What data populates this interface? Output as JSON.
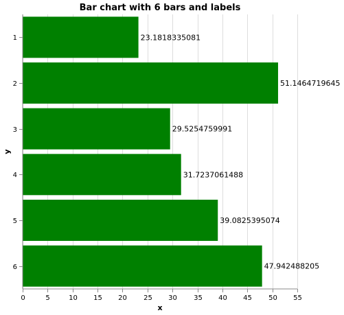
{
  "chart_data": {
    "type": "bar",
    "orientation": "horizontal",
    "title": "Bar chart with 6 bars and labels",
    "xlabel": "x",
    "ylabel": "y",
    "categories": [
      "1",
      "2",
      "3",
      "4",
      "5",
      "6"
    ],
    "values": [
      23.1818335081,
      51.1464719645,
      29.5254759991,
      31.7237061488,
      39.0825395074,
      47.942488205
    ],
    "value_labels": [
      "23.1818335081",
      "51.1464719645",
      "29.5254759991",
      "31.7237061488",
      "39.0825395074",
      "47.942488205"
    ],
    "xlim": [
      0,
      55
    ],
    "xticks": [
      0,
      5,
      10,
      15,
      20,
      25,
      30,
      35,
      40,
      45,
      50,
      55
    ],
    "grid": true,
    "bar_color": "#008000"
  }
}
